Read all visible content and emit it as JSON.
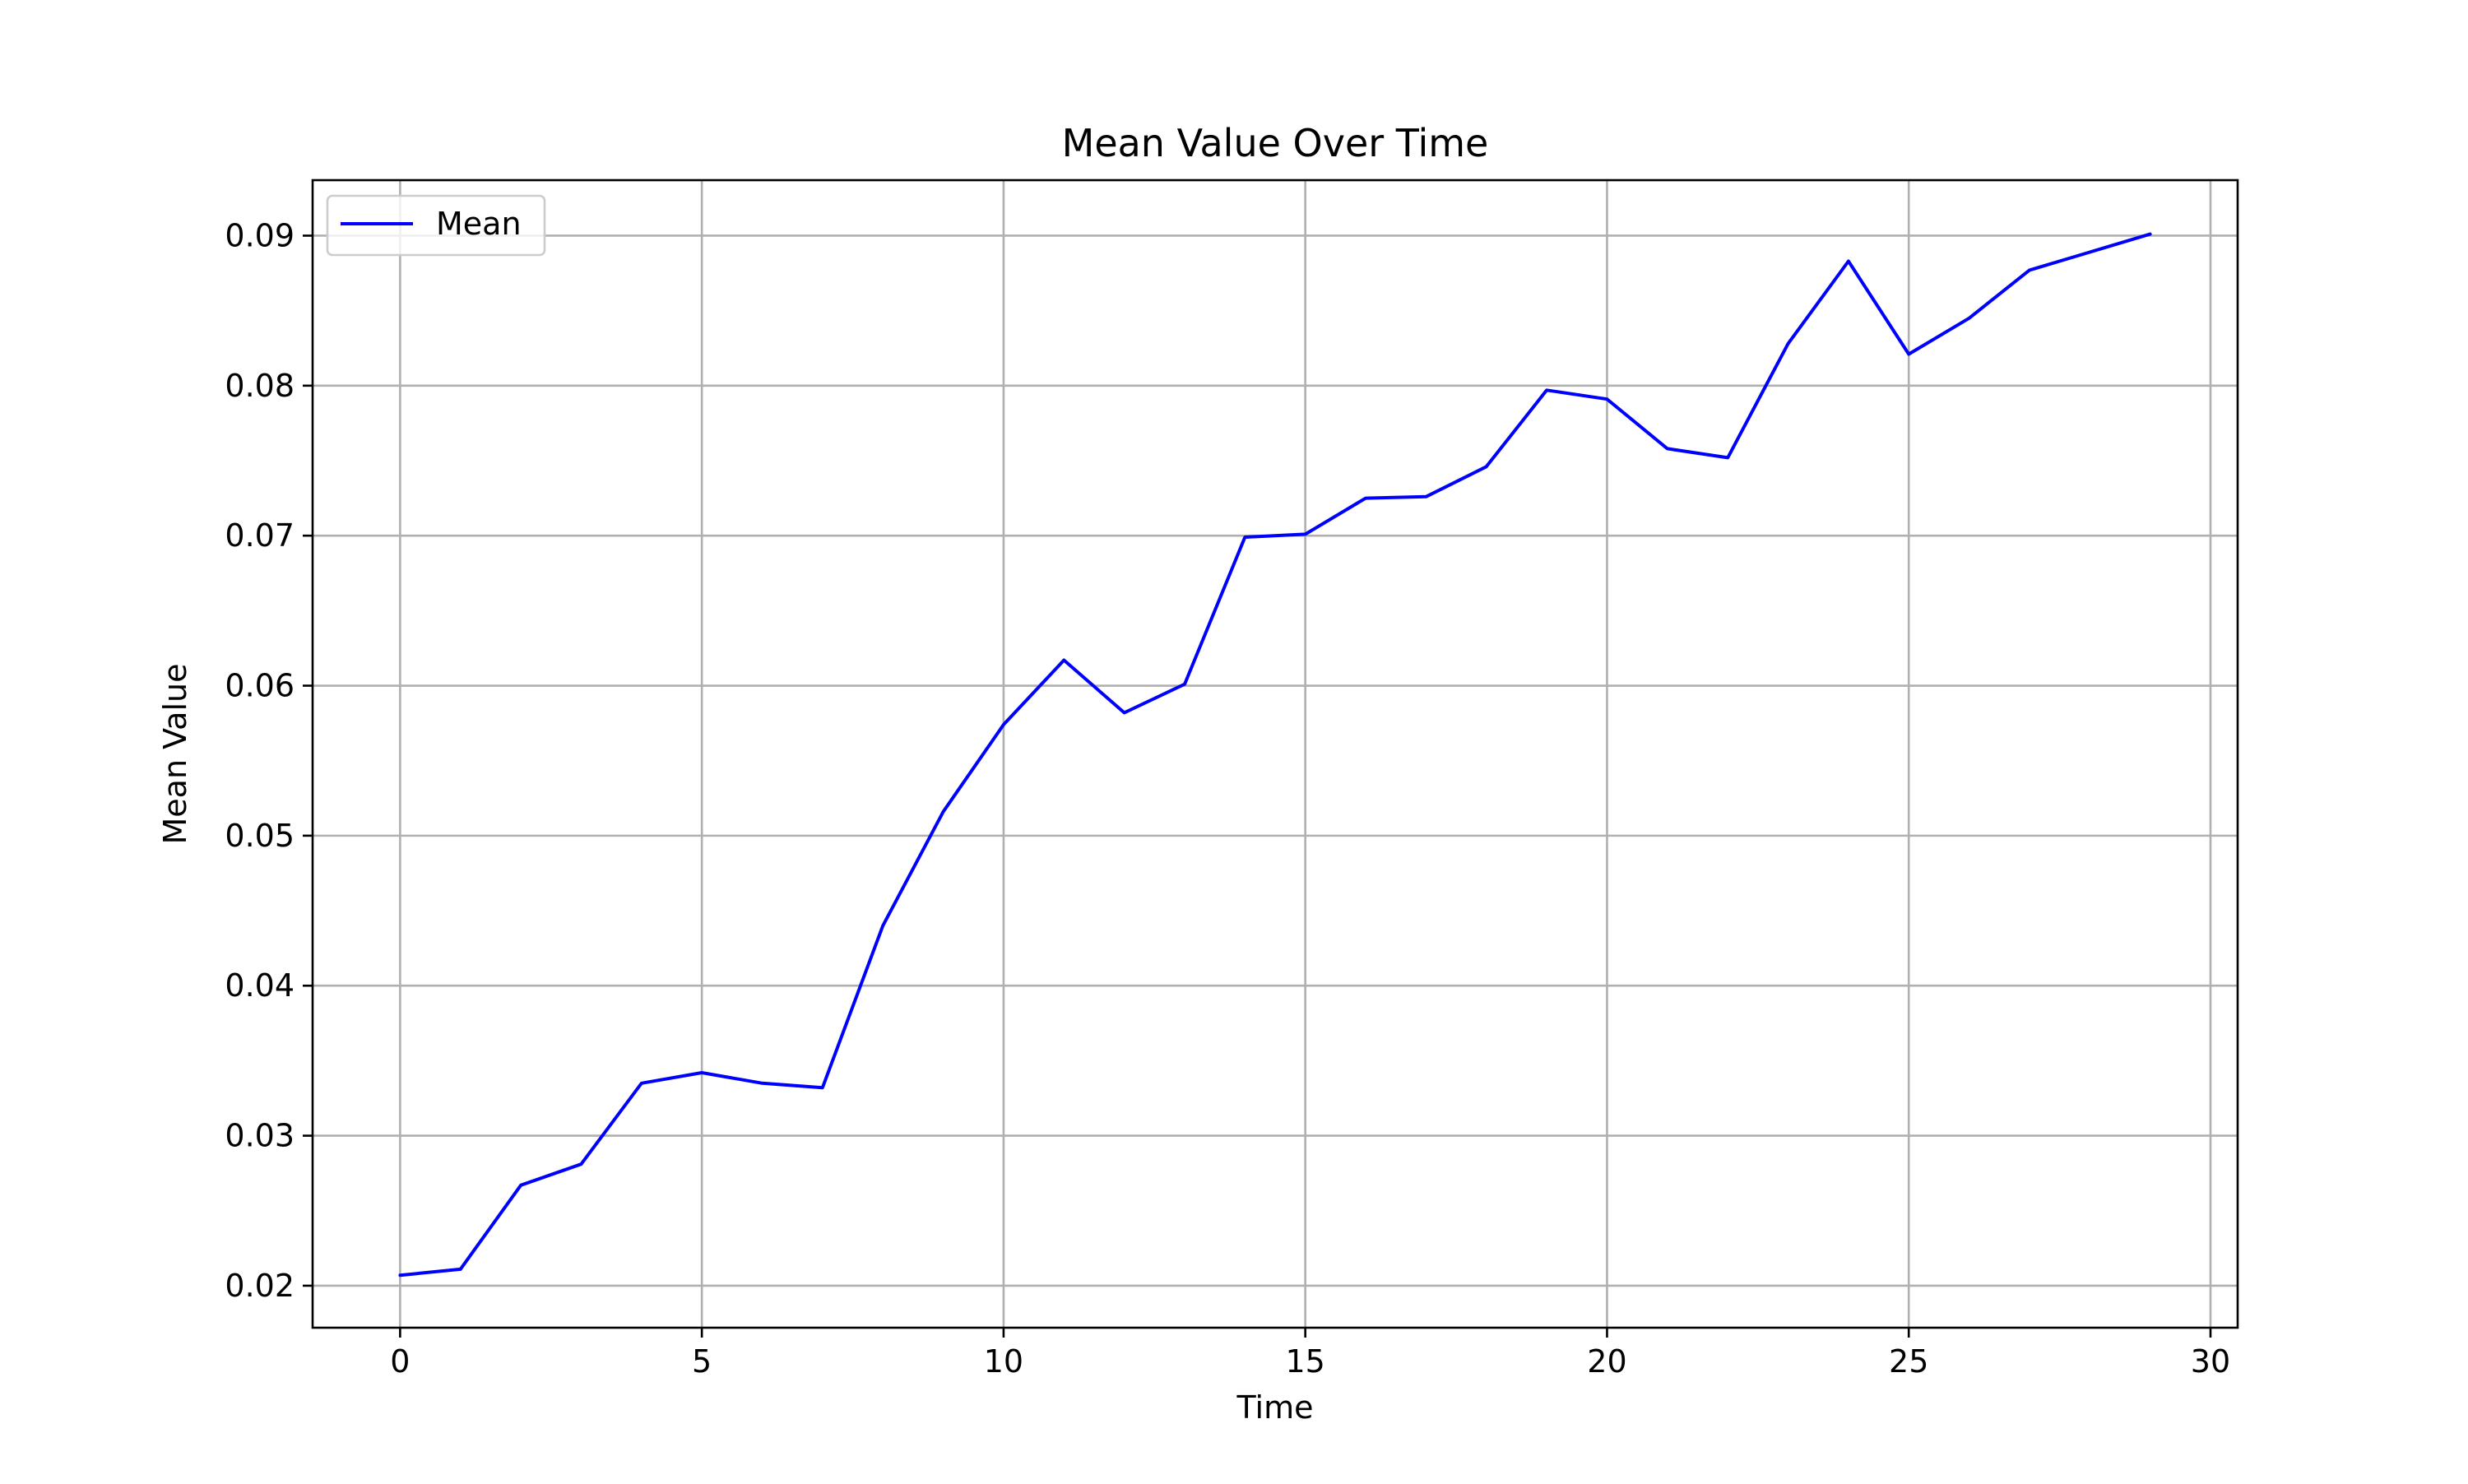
{
  "chart_data": {
    "type": "line",
    "title": "Mean Value Over Time",
    "xlabel": "Time",
    "ylabel": "Mean Value",
    "xlim": [
      -1.45,
      30.45
    ],
    "ylim": [
      0.0172,
      0.0937
    ],
    "xticks": [
      0,
      5,
      10,
      15,
      20,
      25,
      30
    ],
    "yticks": [
      0.02,
      0.03,
      0.04,
      0.05,
      0.06,
      0.07,
      0.08,
      0.09
    ],
    "ytick_labels": [
      "0.02",
      "0.03",
      "0.04",
      "0.05",
      "0.06",
      "0.07",
      "0.08",
      "0.09"
    ],
    "grid": true,
    "legend_position": "top-left",
    "x": [
      0,
      1,
      2,
      3,
      4,
      5,
      6,
      7,
      8,
      9,
      10,
      11,
      12,
      13,
      14,
      15,
      16,
      17,
      18,
      19,
      20,
      21,
      22,
      23,
      24,
      25,
      26,
      27,
      28,
      29
    ],
    "series": [
      {
        "name": "Mean",
        "color": "#0000ff",
        "values": [
          0.0207,
          0.0211,
          0.0267,
          0.0281,
          0.0335,
          0.0342,
          0.0335,
          0.0332,
          0.044,
          0.0516,
          0.0574,
          0.0617,
          0.0582,
          0.0601,
          0.0699,
          0.0701,
          0.0725,
          0.0726,
          0.0746,
          0.0797,
          0.0791,
          0.0758,
          0.0752,
          0.0828,
          0.0883,
          0.0821,
          0.0845,
          0.0877,
          0.0889,
          0.0901
        ]
      }
    ]
  }
}
